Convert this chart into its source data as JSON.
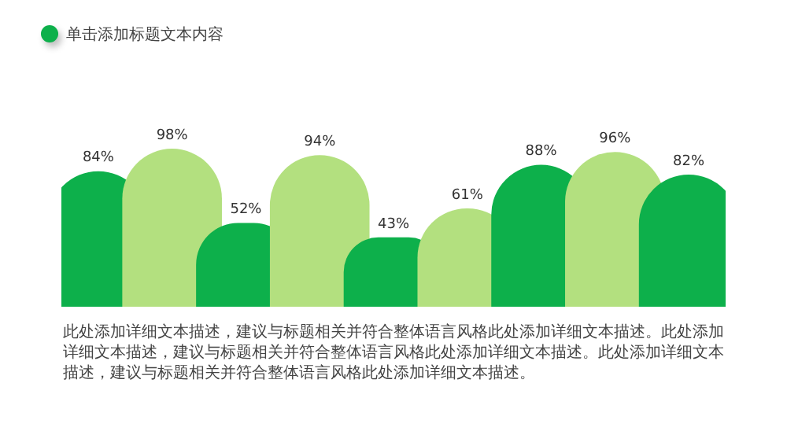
{
  "chart_data": {
    "type": "bar",
    "title": "单击添加标题文本内容",
    "categories": [
      null,
      null,
      null,
      null,
      null,
      null,
      null,
      null,
      null
    ],
    "values": [
      84,
      98,
      52,
      94,
      43,
      61,
      88,
      96,
      82
    ],
    "colors": [
      "#0db04b",
      "#b3e07f",
      "#0db04b",
      "#b3e07f",
      "#0db04b",
      "#b3e07f",
      "#0db04b",
      "#b3e07f",
      "#0db04b"
    ],
    "data_labels": true,
    "value_labels": [
      "84%",
      "98%",
      "52%",
      "94%",
      "43%",
      "61%",
      "88%",
      "96%",
      "82%"
    ],
    "tick_labels": false,
    "legend": false,
    "annotations": [
      "此处添加详细文本描述，建议与标题相关并符合整体语言风格此处添加详细文本描述。此处添加详细文本描述，建议与标题相关并符合整体语言风格此处添加详细文本描述。此处添加详细文本描述，建议与标题相关并符合整体语言风格此处添加详细文本描述。"
    ]
  }
}
